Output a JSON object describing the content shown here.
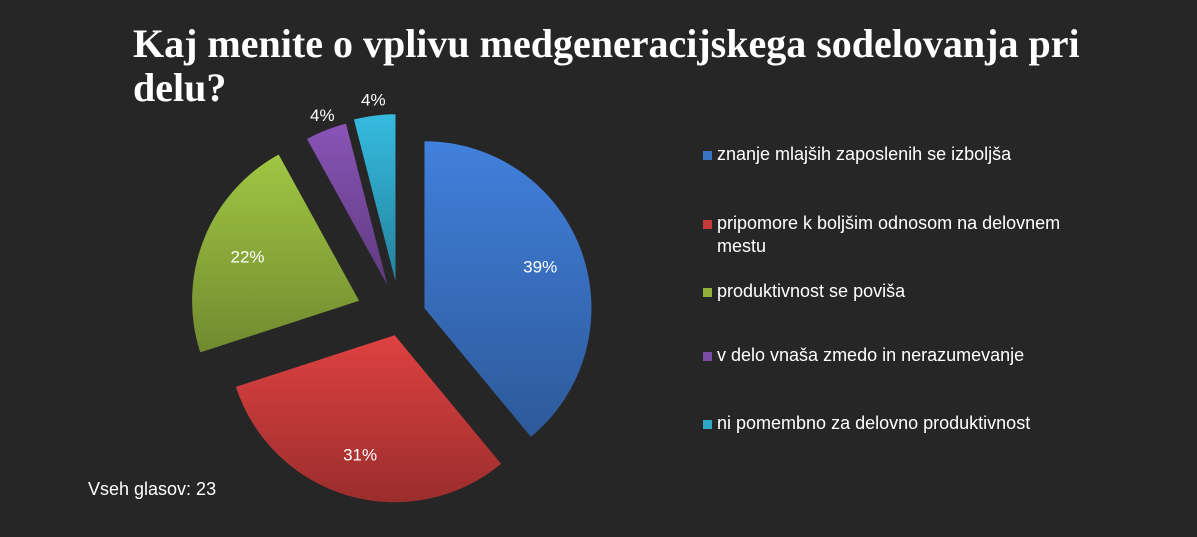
{
  "chart_data": {
    "type": "pie",
    "title": "Kaj menite o vplivu medgeneracijskega sodelovanja pri delu?",
    "categories": [
      "znanje mlajših zaposlenih se izboljša",
      "pripomore k boljšim odnosom na delovnem mestu",
      "produktivnost se poviša",
      "v delo vnaša zmedo in nerazumevanje",
      "ni pomembno za delovno produktivnost"
    ],
    "values": [
      39,
      31,
      22,
      4,
      4
    ],
    "labels": [
      "39%",
      "31%",
      "22%",
      "4%",
      "4%"
    ],
    "colors": [
      "#3a72c4",
      "#c73a3a",
      "#8fb13c",
      "#7a4ba3",
      "#2fa7c8"
    ],
    "legend_position": "right",
    "exploded": true
  },
  "footer": {
    "total_votes": "Vseh glasov: 23"
  }
}
